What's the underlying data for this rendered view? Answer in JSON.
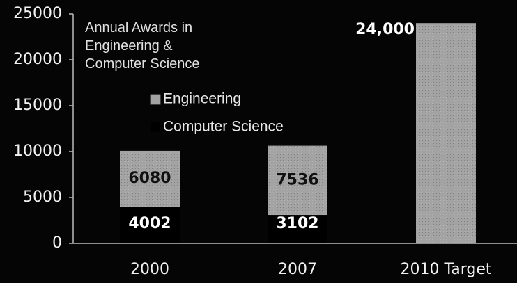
{
  "chart_data": {
    "type": "stacked_bar",
    "title": "Annual Awards in Engineering & Computer Science",
    "categories": [
      "2000",
      "2007",
      "2010 Target"
    ],
    "series": [
      {
        "name": "Computer Science",
        "color": "#000000",
        "values": [
          4002,
          3102,
          null
        ]
      },
      {
        "name": "Engineering",
        "color": "#a3a3a3",
        "values": [
          6080,
          7536,
          24000
        ],
        "value_labels": [
          "6080",
          "7536",
          "24,000"
        ]
      }
    ],
    "ylim": [
      0,
      25000
    ],
    "yticks": [
      0,
      5000,
      10000,
      15000,
      20000,
      25000
    ],
    "grid": false
  }
}
